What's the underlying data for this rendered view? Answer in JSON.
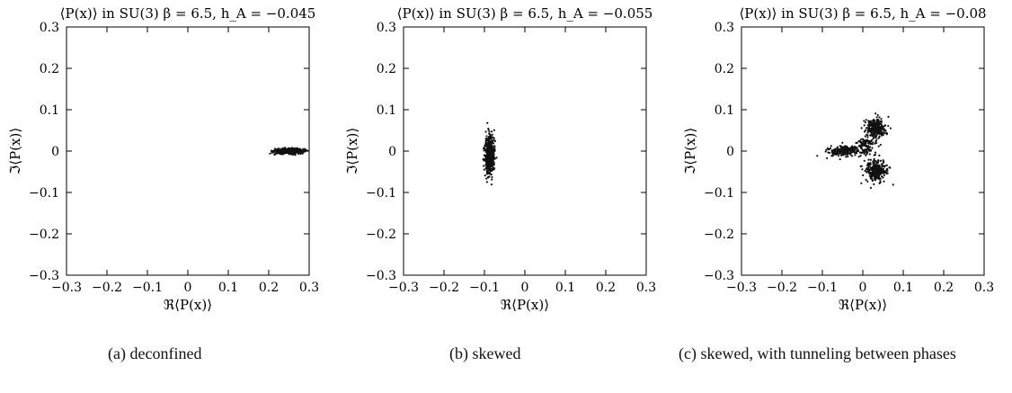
{
  "chart_data": [
    {
      "type": "scatter",
      "title": "⟨P(x)⟩ in SU(3) β = 6.5, h_A = −0.045",
      "xlabel": "ℜ⟨P(x)⟩",
      "ylabel": "ℑ⟨P(x)⟩",
      "xlim": [
        -0.3,
        0.3
      ],
      "ylim": [
        -0.3,
        0.3
      ],
      "xticks": [
        "−0.3",
        "−0.2",
        "−0.1",
        "0",
        "0.1",
        "0.2",
        "0.3"
      ],
      "yticks": [
        "0.3",
        "0.2",
        "0.1",
        "0",
        "−0.1",
        "−0.2",
        "−0.3"
      ],
      "clusters": [
        {
          "center": [
            0.25,
            0.0
          ],
          "spread": [
            0.018,
            0.003
          ],
          "count": 500
        }
      ],
      "caption_label": "(a)",
      "caption_text": "deconfined"
    },
    {
      "type": "scatter",
      "title": "⟨P(x)⟩ in SU(3) β = 6.5, h_A = −0.055",
      "xlabel": "ℜ⟨P(x)⟩",
      "ylabel": "ℑ⟨P(x)⟩",
      "xlim": [
        -0.3,
        0.3
      ],
      "ylim": [
        -0.3,
        0.3
      ],
      "xticks": [
        "−0.3",
        "−0.2",
        "−0.1",
        "0",
        "0.1",
        "0.2",
        "0.3"
      ],
      "yticks": [
        "0.3",
        "0.2",
        "0.1",
        "0",
        "−0.1",
        "−0.2",
        "−0.3"
      ],
      "clusters": [
        {
          "center": [
            -0.087,
            -0.008
          ],
          "spread": [
            0.0055,
            0.024
          ],
          "count": 500
        }
      ],
      "caption_label": "(b)",
      "caption_text": "skewed"
    },
    {
      "type": "scatter",
      "title": "⟨P(x)⟩ in SU(3) β = 6.5, h_A = −0.08",
      "xlabel": "ℜ⟨P(x)⟩",
      "ylabel": "ℑ⟨P(x)⟩",
      "xlim": [
        -0.3,
        0.3
      ],
      "ylim": [
        -0.3,
        0.3
      ],
      "xticks": [
        "−0.3",
        "−0.2",
        "−0.1",
        "0",
        "0.1",
        "0.2",
        "0.3"
      ],
      "yticks": [
        "0.3",
        "0.2",
        "0.1",
        "0",
        "−0.1",
        "−0.2",
        "−0.3"
      ],
      "clusters": [
        {
          "center": [
            0.032,
            0.055
          ],
          "spread": [
            0.013,
            0.012
          ],
          "count": 260
        },
        {
          "center": [
            0.033,
            -0.048
          ],
          "spread": [
            0.013,
            0.014
          ],
          "count": 280
        },
        {
          "center": [
            -0.045,
            0.0
          ],
          "spread": [
            0.02,
            0.006
          ],
          "count": 200
        },
        {
          "center": [
            0.005,
            0.01
          ],
          "spread": [
            0.013,
            0.012
          ],
          "count": 110
        }
      ],
      "caption_label": "(c)",
      "caption_text": "skewed, with tunneling between phases"
    }
  ]
}
